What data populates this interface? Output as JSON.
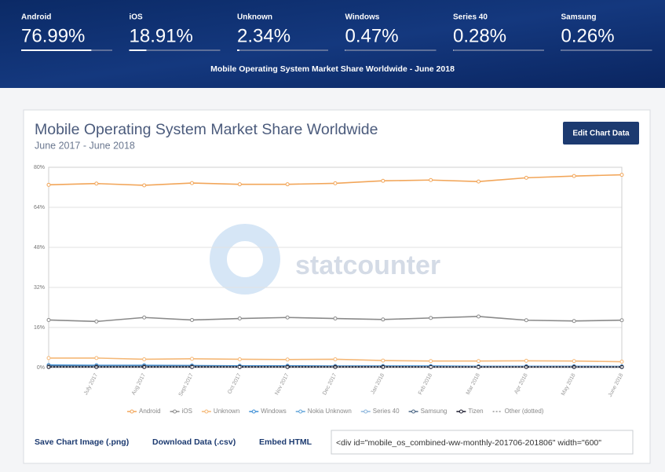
{
  "banner": {
    "stats": [
      {
        "name": "Android",
        "value": 76.99,
        "label": "76.99%"
      },
      {
        "name": "iOS",
        "value": 18.91,
        "label": "18.91%"
      },
      {
        "name": "Unknown",
        "value": 2.34,
        "label": "2.34%"
      },
      {
        "name": "Windows",
        "value": 0.47,
        "label": "0.47%"
      },
      {
        "name": "Series 40",
        "value": 0.28,
        "label": "0.28%"
      },
      {
        "name": "Samsung",
        "value": 0.26,
        "label": "0.26%"
      }
    ],
    "caption": "Mobile Operating System Market Share Worldwide - June 2018"
  },
  "edit_button": "Edit Chart Data",
  "watermark": "statcounter",
  "chart_data": {
    "type": "line",
    "title": "Mobile Operating System Market Share Worldwide",
    "subtitle": "June 2017 - June 2018",
    "categories": [
      null,
      "July 2017",
      "Aug 2017",
      "Sept 2017",
      "Oct 2017",
      "Nov 2017",
      "Dec 2017",
      "Jan 2018",
      "Feb 2018",
      "Mar 2018",
      "Apr 2018",
      "May 2018",
      "June 2018"
    ],
    "ylim": [
      0,
      80
    ],
    "yticks": [
      {
        "value": 0,
        "label": "0%"
      },
      {
        "value": 16,
        "label": "16%"
      },
      {
        "value": 32,
        "label": "32%"
      },
      {
        "value": 48,
        "label": "48%"
      },
      {
        "value": 64,
        "label": "64%"
      },
      {
        "value": 80,
        "label": "80%"
      }
    ],
    "grid": true,
    "legend": "bottom",
    "series": [
      {
        "name": "Android",
        "color": "#f2a65a",
        "values": [
          73.0,
          73.5,
          72.8,
          73.7,
          73.2,
          73.2,
          73.6,
          74.6,
          74.9,
          74.3,
          75.8,
          76.5,
          76.99
        ]
      },
      {
        "name": "iOS",
        "color": "#8a8a8a",
        "values": [
          19.0,
          18.4,
          20.0,
          19.0,
          19.6,
          20.0,
          19.6,
          19.2,
          19.8,
          20.4,
          18.9,
          18.6,
          18.91
        ]
      },
      {
        "name": "Unknown",
        "color": "#f5b877",
        "values": [
          3.8,
          3.8,
          3.3,
          3.5,
          3.3,
          3.2,
          3.3,
          2.8,
          2.6,
          2.6,
          2.7,
          2.6,
          2.34
        ]
      },
      {
        "name": "Windows",
        "color": "#3d8fd6",
        "values": [
          1.0,
          0.9,
          0.9,
          0.8,
          0.7,
          0.7,
          0.6,
          0.6,
          0.6,
          0.5,
          0.5,
          0.5,
          0.47
        ]
      },
      {
        "name": "Nokia Unknown",
        "color": "#5fa3d9",
        "values": [
          0.4,
          0.4,
          0.4,
          0.3,
          0.3,
          0.3,
          0.3,
          0.3,
          0.3,
          0.3,
          0.3,
          0.2,
          0.2
        ]
      },
      {
        "name": "Series 40",
        "color": "#8db6dc",
        "values": [
          0.5,
          0.5,
          0.4,
          0.4,
          0.4,
          0.4,
          0.4,
          0.3,
          0.3,
          0.3,
          0.3,
          0.3,
          0.28
        ]
      },
      {
        "name": "Samsung",
        "color": "#4a6685",
        "values": [
          0.6,
          0.5,
          0.5,
          0.5,
          0.4,
          0.4,
          0.4,
          0.4,
          0.3,
          0.3,
          0.3,
          0.3,
          0.26
        ]
      },
      {
        "name": "Tizen",
        "color": "#1b1b2e",
        "values": [
          0.2,
          0.2,
          0.2,
          0.2,
          0.2,
          0.2,
          0.2,
          0.2,
          0.2,
          0.2,
          0.2,
          0.2,
          0.2
        ]
      },
      {
        "name": "Other (dotted)",
        "color": "#9a9a9a",
        "dotted": true,
        "values": [
          0.3,
          0.3,
          0.3,
          0.3,
          0.3,
          0.3,
          0.3,
          0.3,
          0.3,
          0.3,
          0.3,
          0.3,
          0.3
        ]
      }
    ]
  },
  "footer": {
    "links": [
      "Save Chart Image (.png)",
      "Download Data (.csv)",
      "Embed HTML"
    ],
    "embed_code": "<div id=\"mobile_os_combined-ww-monthly-201706-201806\" width=\"600\""
  }
}
